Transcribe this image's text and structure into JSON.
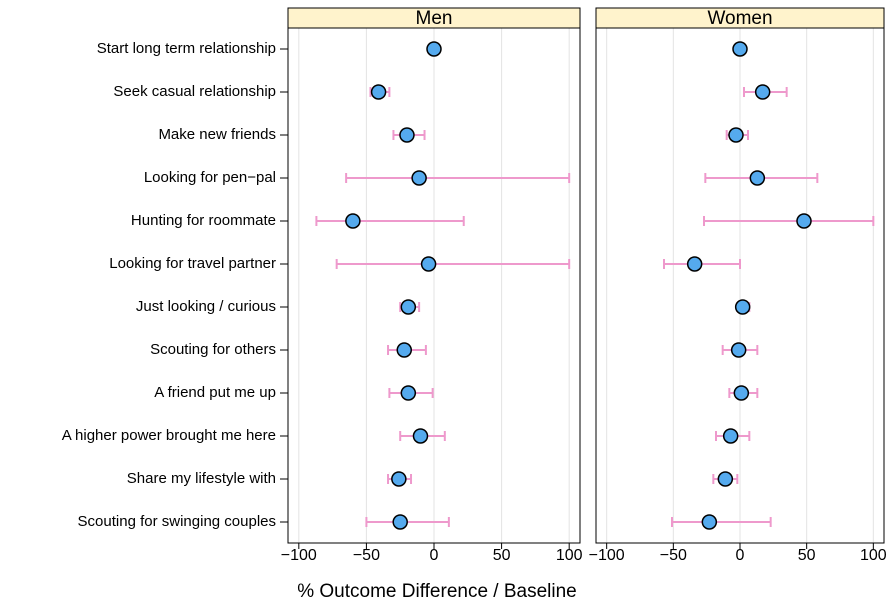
{
  "chart_data": {
    "type": "dotplot",
    "xlabel": "% Outcome Difference / Baseline",
    "categories": [
      "Start long term relationship",
      "Seek casual relationship",
      "Make new friends",
      "Looking for pen−pal",
      "Hunting for roommate",
      "Looking for travel partner",
      "Just looking / curious",
      "Scouting for others",
      "A friend put me up",
      "A higher power brought me here",
      "Share my lifestyle with",
      "Scouting for swinging couples"
    ],
    "xlim": [
      -108,
      108
    ],
    "xticks": [
      {
        "value": -100,
        "label": "−100"
      },
      {
        "value": -50,
        "label": "−50"
      },
      0,
      50,
      100
    ],
    "grid": true,
    "point_color": "#55aaee",
    "errorbar_color": "#ee99cc",
    "strip_color": "#fff3cc",
    "panels": [
      {
        "title": "Men",
        "values": [
          0,
          -41,
          -20,
          -11,
          -60,
          -4,
          -19,
          -22,
          -19,
          -10,
          -26,
          -25
        ],
        "lower": [
          -1,
          -47,
          -30,
          -65,
          -87,
          -72,
          -25,
          -34,
          -33,
          -25,
          -34,
          -50
        ],
        "upper": [
          1,
          -33,
          -7,
          100,
          22,
          100,
          -11,
          -6,
          -1,
          8,
          -17,
          11
        ]
      },
      {
        "title": "Women",
        "values": [
          0,
          17,
          -3,
          13,
          48,
          -34,
          2,
          -1,
          1,
          -7,
          -11,
          -23
        ],
        "lower": [
          -1,
          3,
          -10,
          -26,
          -27,
          -57,
          -2,
          -13,
          -8,
          -18,
          -20,
          -51
        ],
        "upper": [
          1,
          35,
          6,
          58,
          100,
          0,
          7,
          13,
          13,
          7,
          -2,
          23
        ]
      }
    ]
  }
}
